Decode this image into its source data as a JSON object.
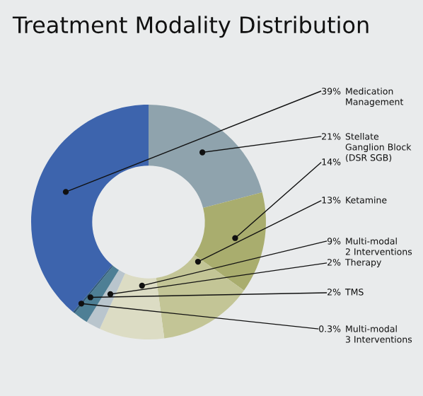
{
  "chart_data": {
    "type": "donut",
    "title": "Treatment Modality Distribution",
    "categories": [
      "Medication\nManagement",
      "Stellate\nGanglion Block\n(DSR SGB)",
      null,
      "Ketamine",
      "Multi-modal\n2 Interventions",
      "Therapy",
      "TMS",
      "Multi-modal\n3 Interventions"
    ],
    "values": [
      39,
      21,
      14,
      13,
      9,
      2,
      2,
      0.3
    ],
    "value_labels": [
      "39%",
      "21%",
      "14%",
      "13%",
      "9%",
      "2%",
      "2%",
      "0.3%"
    ],
    "colors": [
      "#3d64ad",
      "#8fa3ad",
      "#a9ad6e",
      "#c3c596",
      "#dcdcc4",
      "#b9c5cd",
      "#4e7f95",
      "#2f5a7a"
    ],
    "legend": false
  }
}
